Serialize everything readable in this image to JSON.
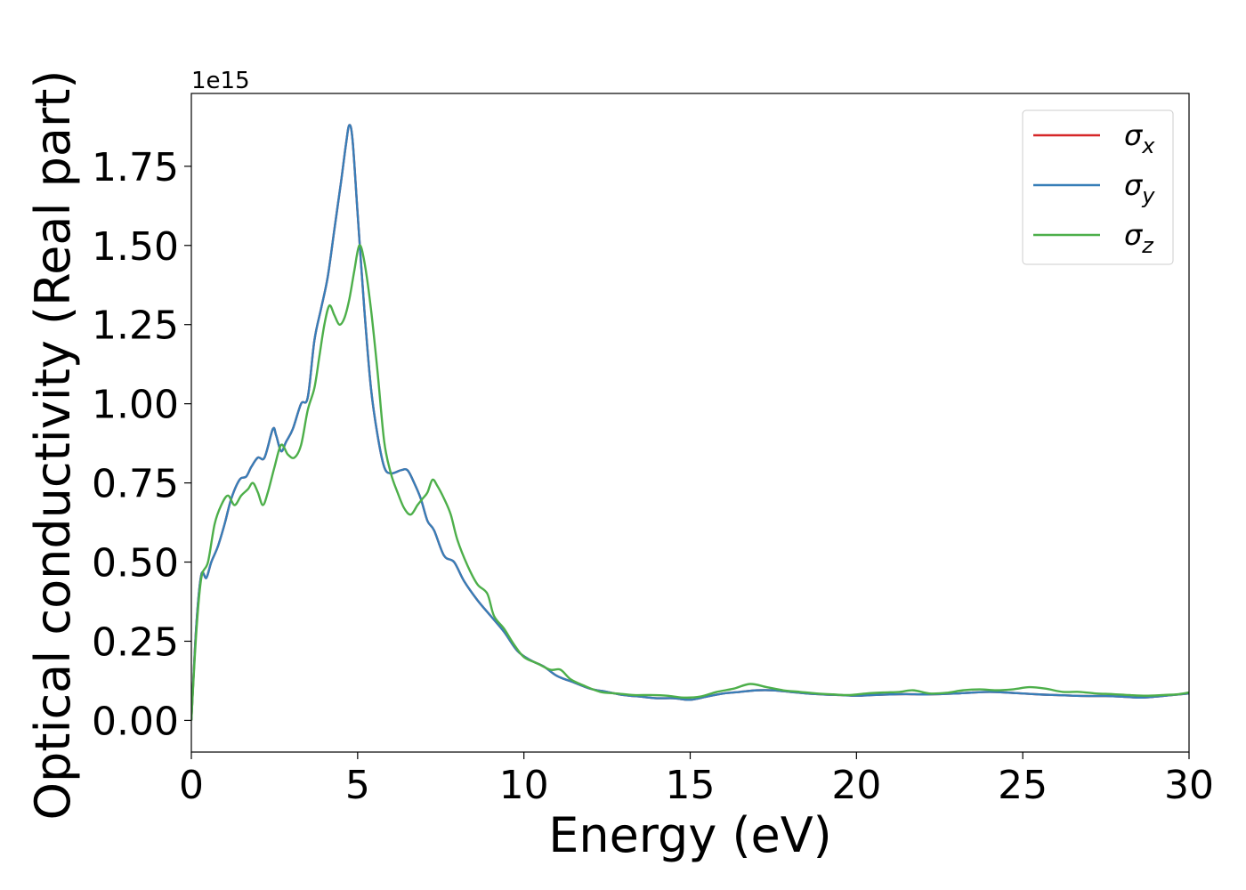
{
  "chart_data": {
    "type": "line",
    "xlabel": "Energy (eV)",
    "ylabel": "Optical conductivity (Real part)",
    "y_offset_label": "1e15",
    "xlim": [
      0,
      30
    ],
    "ylim": [
      -0.1,
      1.98
    ],
    "x_ticks": [
      0,
      5,
      10,
      15,
      20,
      25,
      30
    ],
    "x_tick_labels": [
      "0",
      "5",
      "10",
      "15",
      "20",
      "25",
      "30"
    ],
    "y_ticks": [
      0.0,
      0.25,
      0.5,
      0.75,
      1.0,
      1.25,
      1.5,
      1.75
    ],
    "y_tick_labels": [
      "0.00",
      "0.25",
      "0.50",
      "0.75",
      "1.00",
      "1.25",
      "1.50",
      "1.75"
    ],
    "grid": false,
    "legend": {
      "placement": "top-right",
      "entries": [
        {
          "symbol": "σ",
          "subscript": "x"
        },
        {
          "symbol": "σ",
          "subscript": "y"
        },
        {
          "symbol": "σ",
          "subscript": "z"
        }
      ]
    },
    "series": [
      {
        "color": "#d62728",
        "x": [
          0,
          0.15,
          0.3,
          0.45,
          0.6,
          0.8,
          1.0,
          1.2,
          1.45,
          1.65,
          1.8,
          2.0,
          2.2,
          2.45,
          2.55,
          2.7,
          2.85,
          3.05,
          3.3,
          3.5,
          3.7,
          3.9,
          4.1,
          4.3,
          4.5,
          4.65,
          4.75,
          4.85,
          5.0,
          5.2,
          5.4,
          5.6,
          5.8,
          6.0,
          6.3,
          6.5,
          6.7,
          6.9,
          7.1,
          7.3,
          7.6,
          7.9,
          8.2,
          8.6,
          9.0,
          9.4,
          9.8,
          10.2,
          10.6,
          11.0,
          11.5,
          12.0,
          12.5,
          13.0,
          13.5,
          14.0,
          14.5,
          15.0,
          15.5,
          16.0,
          16.5,
          17.0,
          17.5,
          18.0,
          18.5,
          19.0,
          19.5,
          20.0,
          20.5,
          21.0,
          21.5,
          22.0,
          22.5,
          23.0,
          23.5,
          24.0,
          24.5,
          25.0,
          25.5,
          26.0,
          26.5,
          27.0,
          27.5,
          28.0,
          28.5,
          29.0,
          29.5,
          30.0
        ],
        "values": [
          0.0,
          0.3,
          0.46,
          0.45,
          0.5,
          0.55,
          0.62,
          0.7,
          0.76,
          0.77,
          0.8,
          0.83,
          0.83,
          0.92,
          0.9,
          0.85,
          0.88,
          0.92,
          1.0,
          1.02,
          1.2,
          1.3,
          1.4,
          1.55,
          1.7,
          1.82,
          1.88,
          1.83,
          1.6,
          1.3,
          1.05,
          0.9,
          0.8,
          0.78,
          0.79,
          0.79,
          0.75,
          0.7,
          0.63,
          0.6,
          0.52,
          0.5,
          0.44,
          0.38,
          0.33,
          0.28,
          0.22,
          0.19,
          0.17,
          0.14,
          0.12,
          0.1,
          0.09,
          0.08,
          0.075,
          0.07,
          0.07,
          0.065,
          0.075,
          0.085,
          0.09,
          0.095,
          0.095,
          0.09,
          0.085,
          0.082,
          0.08,
          0.078,
          0.08,
          0.082,
          0.083,
          0.082,
          0.083,
          0.085,
          0.088,
          0.09,
          0.088,
          0.085,
          0.082,
          0.08,
          0.078,
          0.077,
          0.077,
          0.075,
          0.072,
          0.075,
          0.08,
          0.085
        ]
      },
      {
        "color": "#377eb8",
        "x": [
          0,
          0.15,
          0.3,
          0.45,
          0.6,
          0.8,
          1.0,
          1.2,
          1.45,
          1.65,
          1.8,
          2.0,
          2.2,
          2.45,
          2.55,
          2.7,
          2.85,
          3.05,
          3.3,
          3.5,
          3.7,
          3.9,
          4.1,
          4.3,
          4.5,
          4.65,
          4.75,
          4.85,
          5.0,
          5.2,
          5.4,
          5.6,
          5.8,
          6.0,
          6.3,
          6.5,
          6.7,
          6.9,
          7.1,
          7.3,
          7.6,
          7.9,
          8.2,
          8.6,
          9.0,
          9.4,
          9.8,
          10.2,
          10.6,
          11.0,
          11.5,
          12.0,
          12.5,
          13.0,
          13.5,
          14.0,
          14.5,
          15.0,
          15.5,
          16.0,
          16.5,
          17.0,
          17.5,
          18.0,
          18.5,
          19.0,
          19.5,
          20.0,
          20.5,
          21.0,
          21.5,
          22.0,
          22.5,
          23.0,
          23.5,
          24.0,
          24.5,
          25.0,
          25.5,
          26.0,
          26.5,
          27.0,
          27.5,
          28.0,
          28.5,
          29.0,
          29.5,
          30.0
        ],
        "values": [
          0.0,
          0.3,
          0.46,
          0.45,
          0.5,
          0.55,
          0.62,
          0.7,
          0.76,
          0.77,
          0.8,
          0.83,
          0.83,
          0.92,
          0.9,
          0.85,
          0.88,
          0.92,
          1.0,
          1.02,
          1.2,
          1.3,
          1.4,
          1.55,
          1.7,
          1.82,
          1.88,
          1.83,
          1.6,
          1.3,
          1.05,
          0.9,
          0.8,
          0.78,
          0.79,
          0.79,
          0.75,
          0.7,
          0.63,
          0.6,
          0.52,
          0.5,
          0.44,
          0.38,
          0.33,
          0.28,
          0.22,
          0.19,
          0.17,
          0.14,
          0.12,
          0.1,
          0.09,
          0.08,
          0.075,
          0.07,
          0.07,
          0.065,
          0.075,
          0.085,
          0.09,
          0.095,
          0.095,
          0.09,
          0.085,
          0.082,
          0.08,
          0.078,
          0.08,
          0.082,
          0.083,
          0.082,
          0.083,
          0.085,
          0.088,
          0.09,
          0.088,
          0.085,
          0.082,
          0.08,
          0.078,
          0.077,
          0.077,
          0.075,
          0.072,
          0.075,
          0.08,
          0.085
        ]
      },
      {
        "color": "#4daf4a",
        "x": [
          0,
          0.15,
          0.3,
          0.5,
          0.7,
          0.9,
          1.1,
          1.3,
          1.5,
          1.7,
          1.85,
          2.0,
          2.15,
          2.3,
          2.5,
          2.7,
          2.9,
          3.1,
          3.3,
          3.5,
          3.7,
          3.85,
          4.0,
          4.15,
          4.3,
          4.45,
          4.6,
          4.75,
          4.9,
          5.05,
          5.2,
          5.4,
          5.6,
          5.8,
          6.0,
          6.2,
          6.4,
          6.6,
          6.8,
          6.95,
          7.1,
          7.25,
          7.4,
          7.6,
          7.8,
          8.0,
          8.3,
          8.6,
          8.9,
          9.1,
          9.4,
          9.7,
          10.0,
          10.4,
          10.8,
          11.1,
          11.4,
          11.8,
          12.3,
          12.8,
          13.3,
          13.8,
          14.3,
          14.8,
          15.3,
          15.8,
          16.3,
          16.8,
          17.3,
          17.8,
          18.3,
          18.8,
          19.3,
          19.8,
          20.3,
          20.8,
          21.3,
          21.7,
          22.2,
          22.7,
          23.2,
          23.7,
          24.2,
          24.7,
          25.2,
          25.7,
          26.2,
          26.7,
          27.2,
          27.7,
          28.2,
          28.7,
          29.2,
          29.7,
          30.0
        ],
        "values": [
          0.0,
          0.28,
          0.45,
          0.5,
          0.62,
          0.68,
          0.71,
          0.68,
          0.71,
          0.73,
          0.75,
          0.72,
          0.68,
          0.72,
          0.8,
          0.87,
          0.84,
          0.83,
          0.87,
          0.98,
          1.05,
          1.15,
          1.25,
          1.31,
          1.28,
          1.25,
          1.27,
          1.33,
          1.42,
          1.5,
          1.45,
          1.3,
          1.1,
          0.88,
          0.78,
          0.72,
          0.67,
          0.65,
          0.68,
          0.7,
          0.72,
          0.76,
          0.74,
          0.7,
          0.65,
          0.57,
          0.49,
          0.43,
          0.4,
          0.33,
          0.29,
          0.24,
          0.2,
          0.18,
          0.16,
          0.16,
          0.13,
          0.11,
          0.09,
          0.085,
          0.08,
          0.08,
          0.078,
          0.072,
          0.075,
          0.09,
          0.1,
          0.115,
          0.105,
          0.095,
          0.09,
          0.085,
          0.082,
          0.08,
          0.085,
          0.088,
          0.09,
          0.095,
          0.085,
          0.087,
          0.095,
          0.098,
          0.095,
          0.098,
          0.105,
          0.1,
          0.09,
          0.09,
          0.085,
          0.083,
          0.08,
          0.078,
          0.08,
          0.083,
          0.088
        ]
      }
    ]
  }
}
